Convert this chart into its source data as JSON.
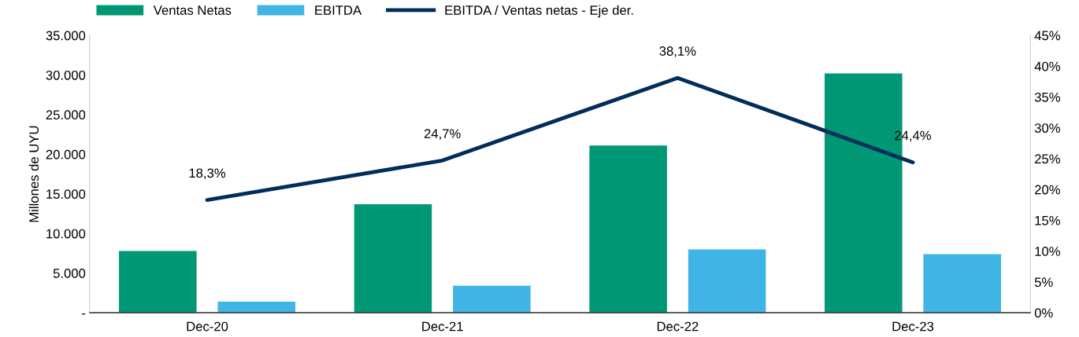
{
  "chart_data": {
    "type": "bar",
    "ylabel": "Millones de UYU",
    "categories": [
      "Dec-20",
      "Dec-21",
      "Dec-22",
      "Dec-23"
    ],
    "series": [
      {
        "name": "Ventas Netas",
        "color": "#009874",
        "values": [
          7800,
          13700,
          21100,
          30200
        ]
      },
      {
        "name": "EBITDA",
        "color": "#41b4e6",
        "values": [
          1400,
          3400,
          8000,
          7400
        ]
      },
      {
        "name": "EBITDA / Ventas netas - Eje der.",
        "type": "line",
        "axis": "y2",
        "color": "#002d5a",
        "values": [
          18.3,
          24.7,
          38.1,
          24.4
        ],
        "value_labels": [
          "18,3%",
          "24,7%",
          "38,1%",
          "24,4%"
        ],
        "marker": "none",
        "line_style": "solid"
      }
    ],
    "ylim": [
      0,
      35000
    ],
    "yticks": [
      {
        "value": 0,
        "label": "-"
      },
      {
        "value": 5000,
        "label": "5.000"
      },
      {
        "value": 10000,
        "label": "10.000"
      },
      {
        "value": 15000,
        "label": "15.000"
      },
      {
        "value": 20000,
        "label": "20.000"
      },
      {
        "value": 25000,
        "label": "25.000"
      },
      {
        "value": 30000,
        "label": "30.000"
      },
      {
        "value": 35000,
        "label": "35.000"
      }
    ],
    "y2lim": [
      0,
      45
    ],
    "y2ticks": [
      {
        "value": 0,
        "label": "0%"
      },
      {
        "value": 5,
        "label": "5%"
      },
      {
        "value": 10,
        "label": "10%"
      },
      {
        "value": 15,
        "label": "15%"
      },
      {
        "value": 20,
        "label": "20%"
      },
      {
        "value": 25,
        "label": "25%"
      },
      {
        "value": 30,
        "label": "30%"
      },
      {
        "value": 35,
        "label": "35%"
      },
      {
        "value": 40,
        "label": "40%"
      },
      {
        "value": 45,
        "label": "45%"
      }
    ],
    "grid": false,
    "legend": "top left"
  }
}
